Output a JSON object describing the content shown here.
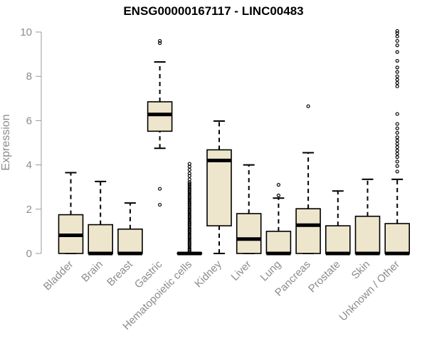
{
  "chart_data": {
    "type": "boxplot",
    "title": "ENSG00000167117 - LINC00483",
    "xlabel": "",
    "ylabel": "Expression",
    "ylim": [
      0,
      10
    ],
    "yticks": [
      0,
      2,
      4,
      6,
      8,
      10
    ],
    "grid": false,
    "legend": "none",
    "colors": {
      "box_fill": "#ede6cc",
      "stroke": "#000000",
      "axis": "#999999",
      "label": "#8c8c8c"
    },
    "categories": [
      "Bladder",
      "Brain",
      "Breast",
      "Gastric",
      "Hematopoietic cells",
      "Kidney",
      "Liver",
      "Lung",
      "Pancreas",
      "Prostate",
      "Skin",
      "Unknown / Other"
    ],
    "boxes": [
      {
        "whisker_low": 0,
        "q1": 0,
        "median": 0.82,
        "q3": 1.75,
        "whisker_high": 3.65,
        "outliers": []
      },
      {
        "whisker_low": 0,
        "q1": 0,
        "median": 0.0,
        "q3": 1.3,
        "whisker_high": 3.25,
        "outliers": []
      },
      {
        "whisker_low": 0,
        "q1": 0,
        "median": 0.0,
        "q3": 1.1,
        "whisker_high": 2.28,
        "outliers": []
      },
      {
        "whisker_low": 4.75,
        "q1": 5.52,
        "median": 6.28,
        "q3": 6.85,
        "whisker_high": 8.65,
        "outliers": [
          9.5,
          9.6,
          2.92,
          2.2
        ]
      },
      {
        "whisker_low": 0,
        "q1": 0,
        "median": 0.0,
        "q3": 0.02,
        "whisker_high": 0.02,
        "outliers": [
          0.08,
          0.15,
          0.22,
          0.3,
          0.38,
          0.45,
          0.52,
          0.6,
          0.68,
          0.75,
          0.82,
          0.9,
          0.98,
          1.05,
          1.12,
          1.2,
          1.28,
          1.35,
          1.42,
          1.5,
          1.58,
          1.65,
          1.72,
          1.8,
          1.88,
          1.95,
          2.02,
          2.1,
          2.18,
          2.25,
          2.32,
          2.4,
          2.48,
          2.55,
          2.62,
          2.7,
          2.78,
          2.85,
          2.92,
          3.0,
          3.08,
          3.15,
          3.22,
          3.35,
          3.5,
          3.62,
          3.78,
          3.92,
          4.05
        ]
      },
      {
        "whisker_low": 0,
        "q1": 1.25,
        "median": 4.2,
        "q3": 4.68,
        "whisker_high": 5.98,
        "outliers": []
      },
      {
        "whisker_low": 0,
        "q1": 0,
        "median": 0.65,
        "q3": 1.8,
        "whisker_high": 4.0,
        "outliers": []
      },
      {
        "whisker_low": 0,
        "q1": 0,
        "median": 0.0,
        "q3": 1.0,
        "whisker_high": 2.5,
        "outliers": [
          3.1,
          2.62
        ]
      },
      {
        "whisker_low": 0,
        "q1": 0,
        "median": 1.28,
        "q3": 2.02,
        "whisker_high": 4.55,
        "outliers": [
          6.65
        ]
      },
      {
        "whisker_low": 0,
        "q1": 0,
        "median": 0.0,
        "q3": 1.25,
        "whisker_high": 2.82,
        "outliers": []
      },
      {
        "whisker_low": 0,
        "q1": 0,
        "median": 0.0,
        "q3": 1.68,
        "whisker_high": 3.35,
        "outliers": []
      },
      {
        "whisker_low": 0,
        "q1": 0,
        "median": 0.0,
        "q3": 1.35,
        "whisker_high": 3.35,
        "outliers": [
          3.7,
          3.95,
          4.15,
          4.35,
          4.5,
          4.65,
          4.8,
          4.95,
          5.1,
          5.25,
          5.45,
          5.65,
          5.85,
          6.3,
          7.55,
          7.7,
          7.85,
          8.0,
          8.2,
          8.4,
          8.7,
          9.1,
          9.4,
          9.6,
          9.8,
          9.95,
          10.05
        ]
      }
    ]
  }
}
